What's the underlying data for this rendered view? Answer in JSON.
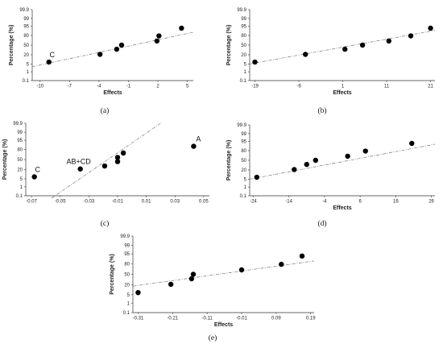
{
  "chart_data": [
    {
      "type": "scatter",
      "caption": "(a)",
      "xlabel": "Effects",
      "ylabel": "Percentage (%)",
      "xlim": [
        -10.8,
        5.6
      ],
      "x_ticks": [
        -10,
        -7,
        -4,
        -1,
        2,
        5
      ],
      "y_ticks": [
        0.1,
        1,
        5,
        20,
        50,
        80,
        95,
        99,
        99.9
      ],
      "points": [
        {
          "x": -9.1,
          "y": 7
        },
        {
          "x": -3.9,
          "y": 21
        },
        {
          "x": -2.2,
          "y": 36
        },
        {
          "x": -1.7,
          "y": 50
        },
        {
          "x": 1.9,
          "y": 64
        },
        {
          "x": 2.1,
          "y": 79
        },
        {
          "x": 4.4,
          "y": 93
        }
      ],
      "fit_line": [
        [
          -10.8,
          3
        ],
        [
          5.6,
          87
        ]
      ],
      "annotations": [
        {
          "text": "C",
          "x": -9.1,
          "y": 7
        }
      ]
    },
    {
      "type": "scatter",
      "caption": "(b)",
      "xlabel": "Effects",
      "ylabel": "Percentage (%)",
      "xlim": [
        -20.2,
        22
      ],
      "x_ticks": [
        -19,
        -9,
        1,
        11,
        21
      ],
      "y_ticks": [
        0.1,
        1,
        5,
        20,
        50,
        80,
        95,
        99,
        99.9
      ],
      "points": [
        {
          "x": -19,
          "y": 7
        },
        {
          "x": -7.5,
          "y": 21
        },
        {
          "x": 1.5,
          "y": 36
        },
        {
          "x": 5.5,
          "y": 50
        },
        {
          "x": 11.5,
          "y": 64
        },
        {
          "x": 16.5,
          "y": 79
        },
        {
          "x": 21,
          "y": 93
        }
      ],
      "fit_line": [
        [
          -20.2,
          5
        ],
        [
          22,
          90
        ]
      ]
    },
    {
      "type": "scatter",
      "caption": "(c)",
      "xlabel": "",
      "ylabel": "Percentage (%)",
      "xlim": [
        -0.074,
        0.054
      ],
      "x_ticks": [
        -0.07,
        -0.05,
        -0.03,
        -0.01,
        0.01,
        0.03,
        0.05
      ],
      "y_ticks": [
        0.1,
        1,
        5,
        20,
        50,
        80,
        95,
        99,
        99.9
      ],
      "points": [
        {
          "x": -0.068,
          "y": 7
        },
        {
          "x": -0.036,
          "y": 21
        },
        {
          "x": -0.019,
          "y": 29
        },
        {
          "x": -0.01,
          "y": 43
        },
        {
          "x": -0.01,
          "y": 57
        },
        {
          "x": -0.006,
          "y": 71
        },
        {
          "x": 0.043,
          "y": 87
        }
      ],
      "fit_line": [
        [
          -0.056,
          0.05
        ],
        [
          0.02,
          99.9
        ]
      ],
      "annotations": [
        {
          "text": "C",
          "x": -0.068,
          "y": 7
        },
        {
          "text": "AB+CD",
          "x": -0.036,
          "y": 21
        },
        {
          "text": "A",
          "x": 0.043,
          "y": 87
        }
      ]
    },
    {
      "type": "scatter",
      "caption": "(d)",
      "xlabel": "Effects",
      "ylabel": "Percentage (%)",
      "xlim": [
        -25,
        27
      ],
      "x_ticks": [
        -24,
        -14,
        -4,
        6,
        16,
        26
      ],
      "y_ticks": [
        0.1,
        1,
        5,
        20,
        50,
        80,
        95,
        99,
        99.9
      ],
      "points": [
        {
          "x": -23,
          "y": 7
        },
        {
          "x": -12.5,
          "y": 21
        },
        {
          "x": -9,
          "y": 36
        },
        {
          "x": -6.5,
          "y": 50
        },
        {
          "x": 2.5,
          "y": 64
        },
        {
          "x": 7.5,
          "y": 79
        },
        {
          "x": 20.5,
          "y": 93
        }
      ],
      "fit_line": [
        [
          -25,
          5
        ],
        [
          27,
          92
        ]
      ]
    },
    {
      "type": "scatter",
      "caption": "(e)",
      "xlabel": "Effects",
      "ylabel": "Percentage (%)",
      "xlim": [
        -0.325,
        0.2
      ],
      "x_ticks": [
        -0.31,
        -0.21,
        -0.11,
        -0.01,
        0.09,
        0.19
      ],
      "y_ticks": [
        0.1,
        1,
        5,
        20,
        50,
        80,
        95,
        99,
        99.9
      ],
      "points": [
        {
          "x": -0.31,
          "y": 7
        },
        {
          "x": -0.215,
          "y": 21
        },
        {
          "x": -0.155,
          "y": 36
        },
        {
          "x": -0.15,
          "y": 50
        },
        {
          "x": -0.01,
          "y": 64
        },
        {
          "x": 0.105,
          "y": 79
        },
        {
          "x": 0.165,
          "y": 93
        }
      ],
      "fit_line": [
        [
          -0.325,
          17
        ],
        [
          0.2,
          86
        ]
      ]
    }
  ]
}
